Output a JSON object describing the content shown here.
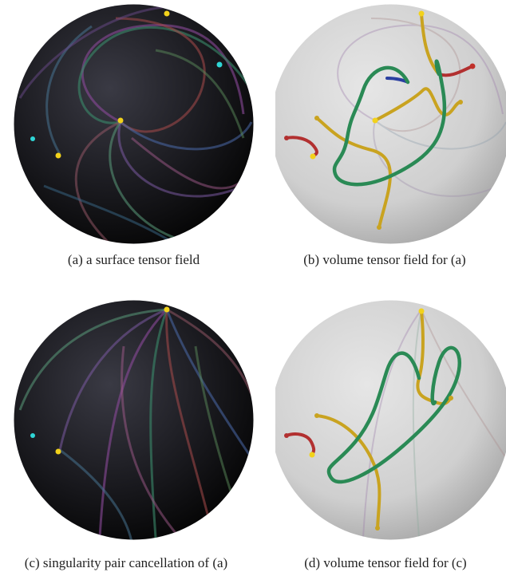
{
  "figure": {
    "panels": [
      {
        "id": "a",
        "caption": "(a) a surface tensor field",
        "style": "dark",
        "variant": "original"
      },
      {
        "id": "b",
        "caption": "(b) volume tensor field for (a)",
        "style": "light",
        "variant": "original"
      },
      {
        "id": "c",
        "caption": "(c) singularity pair cancellation of (a)",
        "style": "dark",
        "variant": "cancelled"
      },
      {
        "id": "d",
        "caption": "(d) volume tensor field for (c)",
        "style": "light",
        "variant": "cancelled"
      }
    ]
  },
  "colors": {
    "sphere_dark": "#0a0a0a",
    "sphere_light": "#c9c9c9",
    "singularity_yellow": "#f2d21b",
    "singularity_cyan": "#2fd6d6",
    "line_green": "#2a8a55",
    "line_yellow": "#c9a320",
    "line_red": "#b23030",
    "line_blue": "#2a3fa0"
  }
}
